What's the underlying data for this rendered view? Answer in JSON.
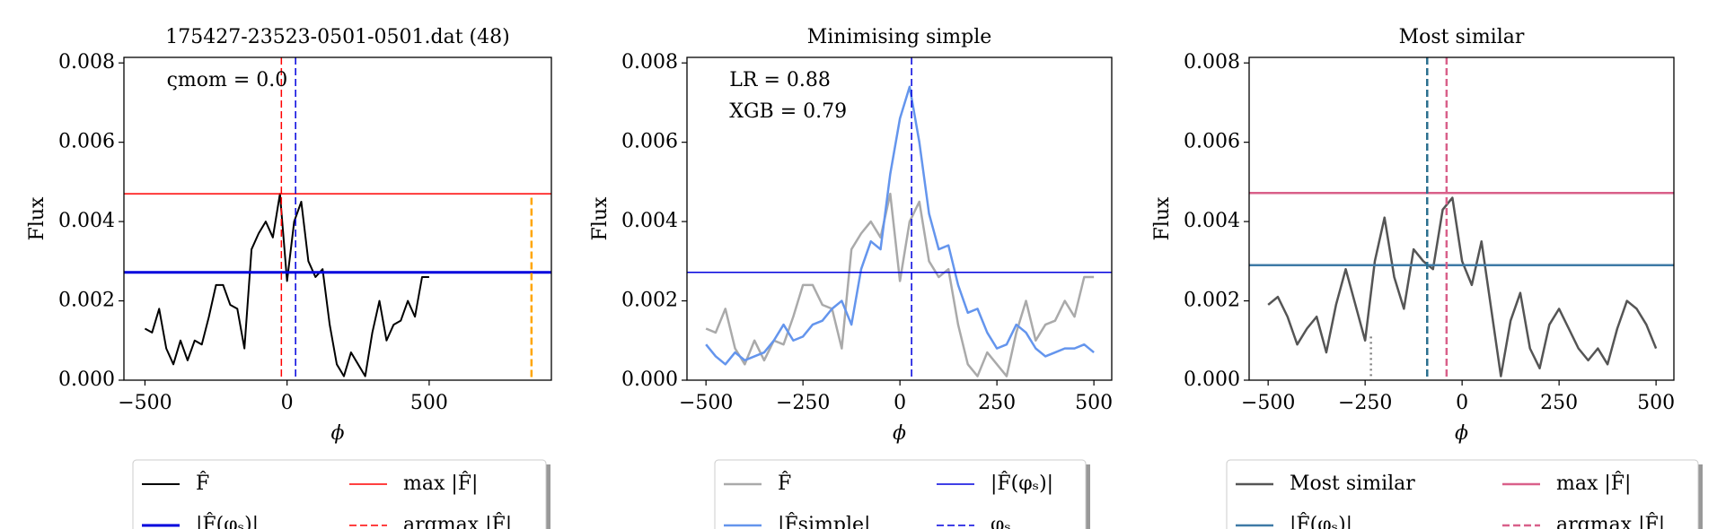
{
  "chart_data": [
    {
      "type": "line",
      "title": "175427-23523-0501-0501.dat (48)",
      "xlabel": "ϕ",
      "ylabel": "Flux",
      "xlim": [
        -574,
        930
      ],
      "ylim": [
        0,
        0.00814
      ],
      "xticks": [
        {
          "value": -500,
          "label": "−500"
        },
        0,
        500
      ],
      "yticks": [
        {
          "value": 0,
          "label": "0.000"
        },
        0.002,
        0.004,
        0.006,
        0.008
      ],
      "x": [
        -500,
        -475,
        -450,
        -425,
        -400,
        -375,
        -350,
        -325,
        -300,
        -275,
        -250,
        -225,
        -200,
        -175,
        -150,
        -125,
        -100,
        -75,
        -50,
        -25,
        0,
        25,
        50,
        75,
        100,
        125,
        150,
        175,
        200,
        225,
        250,
        275,
        300,
        325,
        350,
        375,
        400,
        425,
        450,
        475,
        500
      ],
      "series": [
        {
          "name": "F̂",
          "color": "#000000",
          "linewidth": 2,
          "values": [
            0.0013,
            0.0012,
            0.0018,
            0.0008,
            0.0004,
            0.001,
            0.0005,
            0.001,
            0.0009,
            0.0016,
            0.0024,
            0.0024,
            0.0019,
            0.0018,
            0.0008,
            0.0033,
            0.0037,
            0.004,
            0.0036,
            0.0047,
            0.0025,
            0.004,
            0.0045,
            0.003,
            0.0026,
            0.0028,
            0.0014,
            0.0004,
            0.0001,
            0.0007,
            0.0004,
            0.0001,
            0.0012,
            0.002,
            0.001,
            0.0014,
            0.0015,
            0.002,
            0.0016,
            0.0026,
            0.0026
          ]
        }
      ],
      "hlines": [
        {
          "name": "|F̂(φₛ)|",
          "color": "#0000dd",
          "value": 0.00272,
          "style": "solid",
          "linewidth": 3
        },
        {
          "name": "max |F̂|",
          "color": "#ff0000",
          "value": 0.0047,
          "style": "solid",
          "linewidth": 1.5
        }
      ],
      "vlines": [
        {
          "name": "argmax |F̂|",
          "color": "#ff0000",
          "value": -20,
          "style": "dashed",
          "linewidth": 1.5
        },
        {
          "color": "#0000dd",
          "value": 30,
          "style": "dashed",
          "linewidth": 1.5
        },
        {
          "color": "#ffa500",
          "value": 860,
          "style": "dashed",
          "linewidth": 2.5,
          "span": [
            0,
            0.0046
          ]
        }
      ],
      "annotations": [
        "ςmom = 0.0"
      ]
    },
    {
      "type": "line",
      "title": "Minimising simple",
      "xlabel": "ϕ",
      "ylabel": "Flux",
      "xlim": [
        -549,
        546
      ],
      "ylim": [
        0,
        0.00814
      ],
      "xticks": [
        {
          "value": -500,
          "label": "−500"
        },
        {
          "value": -250,
          "label": "−250"
        },
        0,
        250,
        500
      ],
      "yticks": [
        {
          "value": 0,
          "label": "0.000"
        },
        0.002,
        0.004,
        0.006,
        0.008
      ],
      "x": [
        -500,
        -475,
        -450,
        -425,
        -400,
        -375,
        -350,
        -325,
        -300,
        -275,
        -250,
        -225,
        -200,
        -175,
        -150,
        -125,
        -100,
        -75,
        -50,
        -25,
        0,
        25,
        50,
        75,
        100,
        125,
        150,
        175,
        200,
        225,
        250,
        275,
        300,
        325,
        350,
        375,
        400,
        425,
        450,
        475,
        500
      ],
      "series": [
        {
          "name": "F̂",
          "color": "#aaaaaa",
          "linewidth": 2.5,
          "values": [
            0.0013,
            0.0012,
            0.0018,
            0.0008,
            0.0004,
            0.001,
            0.0005,
            0.001,
            0.0009,
            0.0016,
            0.0024,
            0.0024,
            0.0019,
            0.0018,
            0.0008,
            0.0033,
            0.0037,
            0.004,
            0.0036,
            0.0047,
            0.0025,
            0.004,
            0.0045,
            0.003,
            0.0026,
            0.0028,
            0.0014,
            0.0004,
            0.0001,
            0.0007,
            0.0004,
            0.0001,
            0.0012,
            0.002,
            0.001,
            0.0014,
            0.0015,
            0.002,
            0.0016,
            0.0026,
            0.0026
          ]
        },
        {
          "name": "|F̂simple|",
          "color": "#6495ed",
          "linewidth": 2.5,
          "values": [
            0.0009,
            0.0006,
            0.0004,
            0.0007,
            0.0005,
            0.0006,
            0.0007,
            0.001,
            0.0014,
            0.001,
            0.0011,
            0.0014,
            0.0015,
            0.0018,
            0.002,
            0.0014,
            0.0028,
            0.0035,
            0.0033,
            0.0052,
            0.0066,
            0.0074,
            0.006,
            0.0042,
            0.0033,
            0.0034,
            0.0024,
            0.0017,
            0.0018,
            0.0012,
            0.0008,
            0.0009,
            0.0014,
            0.0012,
            0.0008,
            0.0006,
            0.0007,
            0.0008,
            0.0008,
            0.0009,
            0.0007
          ]
        }
      ],
      "hlines": [
        {
          "name": "|F̂(φₛ)|",
          "color": "#0000dd",
          "value": 0.00272,
          "style": "solid",
          "linewidth": 1.5
        }
      ],
      "vlines": [
        {
          "name": "φₛ",
          "color": "#0000dd",
          "value": 30,
          "style": "dashed",
          "linewidth": 1.5
        }
      ],
      "annotations": [
        "LR = 0.88",
        "XGB = 0.79"
      ]
    },
    {
      "type": "line",
      "title": "Most similar",
      "xlabel": "ϕ",
      "ylabel": "Flux",
      "xlim": [
        -549,
        546
      ],
      "ylim": [
        0,
        0.00814
      ],
      "xticks": [
        {
          "value": -500,
          "label": "−500"
        },
        {
          "value": -250,
          "label": "−250"
        },
        0,
        250,
        500
      ],
      "yticks": [
        {
          "value": 0,
          "label": "0.000"
        },
        0.002,
        0.004,
        0.006,
        0.008
      ],
      "x": [
        -500,
        -475,
        -450,
        -425,
        -400,
        -375,
        -350,
        -325,
        -300,
        -275,
        -250,
        -225,
        -200,
        -175,
        -150,
        -125,
        -100,
        -75,
        -50,
        -25,
        0,
        25,
        50,
        75,
        100,
        125,
        150,
        175,
        200,
        225,
        250,
        275,
        300,
        325,
        350,
        375,
        400,
        425,
        450,
        475,
        500
      ],
      "series": [
        {
          "name": "Most similar",
          "color": "#555555",
          "linewidth": 2.5,
          "values": [
            0.0019,
            0.0021,
            0.0016,
            0.0009,
            0.0013,
            0.0016,
            0.0007,
            0.0019,
            0.0028,
            0.0019,
            0.001,
            0.003,
            0.0041,
            0.0026,
            0.0018,
            0.0033,
            0.003,
            0.0028,
            0.0043,
            0.0046,
            0.003,
            0.0024,
            0.0035,
            0.0018,
            0.0001,
            0.0015,
            0.0022,
            0.0008,
            0.0003,
            0.0014,
            0.0018,
            0.0013,
            0.0008,
            0.0005,
            0.0008,
            0.0004,
            0.0013,
            0.002,
            0.0018,
            0.0014,
            0.0008
          ]
        }
      ],
      "hlines": [
        {
          "name": "|F̂(φₛ)|",
          "color": "#3e7aa6",
          "value": 0.0029,
          "style": "solid",
          "linewidth": 2.5
        },
        {
          "name": "max |F̂|",
          "color": "#d9608a",
          "value": 0.00472,
          "style": "solid",
          "linewidth": 2.5
        }
      ],
      "vlines": [
        {
          "name": "argmax |F̂|",
          "color": "#d9608a",
          "value": -40,
          "style": "dashed",
          "linewidth": 2.5
        },
        {
          "color": "#2b6f8f",
          "value": -90,
          "style": "dashed",
          "linewidth": 2.5
        },
        {
          "color": "#808080",
          "value": -235,
          "style": "dotted",
          "linewidth": 2.5,
          "span": [
            0,
            0.0011
          ]
        }
      ],
      "annotations": []
    }
  ]
}
